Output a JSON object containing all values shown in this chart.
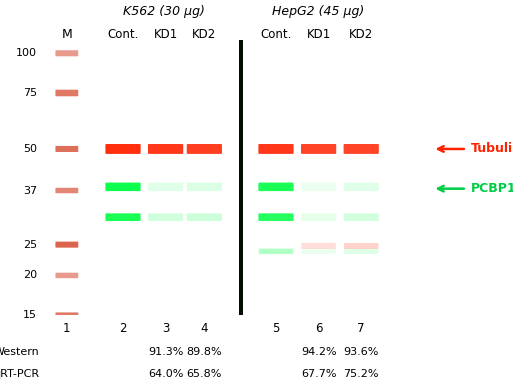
{
  "fig_width": 5.13,
  "fig_height": 3.82,
  "bg_color": "#0d1a00",
  "title_k562": "K562 (30 μg)",
  "title_hepg2": "HepG2 (45 μg)",
  "col_labels_k562": [
    "Cont.",
    "KD1",
    "KD2"
  ],
  "col_labels_hepg2": [
    "Cont.",
    "KD1",
    "KD2"
  ],
  "lane_labels": [
    "1",
    "2",
    "3",
    "4",
    "5",
    "6",
    "7"
  ],
  "marker_label": "M",
  "mw_labels": [
    "100",
    "75",
    "50",
    "37",
    "25",
    "20",
    "15"
  ],
  "mw_values": [
    100,
    75,
    50,
    37,
    25,
    20,
    15
  ],
  "mw_log_min": 15,
  "mw_log_max": 110,
  "ladder_color": "#cc2200",
  "tubulin_color": "#ff2200",
  "pcbp1_color": "#00ff44",
  "right_label_tubulin": "Tubulin",
  "right_label_pcbp1": "PCBP1",
  "right_label_color_tubulin": "#ff2200",
  "right_label_color_pcbp1": "#00cc44",
  "western_label": "Western",
  "qrtpcr_label": "qRT-PCR",
  "k562_kd1_western": "91.3%",
  "k562_kd2_western": "89.8%",
  "k562_kd1_qrt": "64.0%",
  "k562_kd2_qrt": "65.8%",
  "hepg2_kd1_western": "94.2%",
  "hepg2_kd2_western": "93.6%",
  "hepg2_kd1_qrt": "67.7%",
  "hepg2_kd2_qrt": "75.2%"
}
